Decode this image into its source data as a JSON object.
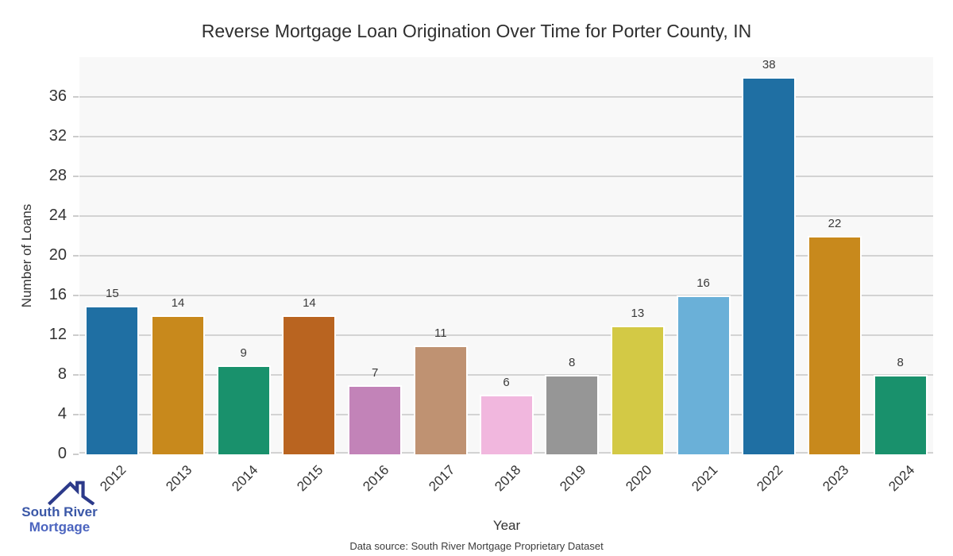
{
  "chart_data": {
    "type": "bar",
    "title": "Reverse Mortgage Loan Origination Over Time for Porter County, IN",
    "categories": [
      "2012",
      "2013",
      "2014",
      "2015",
      "2016",
      "2017",
      "2018",
      "2019",
      "2020",
      "2021",
      "2022",
      "2023",
      "2024"
    ],
    "values": [
      15,
      14,
      9,
      14,
      7,
      11,
      6,
      8,
      13,
      16,
      38,
      22,
      8
    ],
    "bar_colors": [
      "#1f6fa3",
      "#c8891c",
      "#19916c",
      "#b96420",
      "#c283b8",
      "#bf9272",
      "#f1b7de",
      "#969696",
      "#d3c945",
      "#6ab0d8",
      "#1f6fa3",
      "#c8891c",
      "#19916c"
    ],
    "xlabel": "Year",
    "ylabel": "Number of Loans",
    "yticks": [
      0,
      4,
      8,
      12,
      16,
      20,
      24,
      28,
      32,
      36
    ],
    "ylim": [
      0,
      40
    ],
    "grid": "horizontal",
    "legend": "none",
    "panel_bg": "#f8f8f8",
    "gridline_color": "#d3d3d3",
    "bar_edge_color": "#ffffff",
    "value_labels_shown": true
  },
  "footer": {
    "source": "Data source: South River Mortgage Proprietary Dataset"
  },
  "logo": {
    "line1": "South River",
    "line2": "Mortgage",
    "icon": "house-roof-icon",
    "color_line1": "#3a57a7",
    "color_line2": "#4b64bf",
    "color_icon": "#2c3a8a"
  }
}
